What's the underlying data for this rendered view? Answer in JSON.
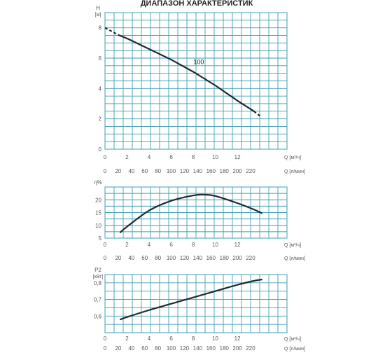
{
  "page": {
    "title": "ДИАПАЗОН ХАРАКТЕРИСТИК",
    "grid_color": "#3f9fb2",
    "curve_color": "#1e2a36"
  },
  "chart_data": [
    {
      "type": "line",
      "ylabel": "H",
      "yunit": "[м]",
      "xlim": [
        0,
        16.5
      ],
      "ylim": [
        0,
        9
      ],
      "xticks": [
        "0",
        "2",
        "4",
        "6",
        "8",
        "10",
        "12"
      ],
      "xtick_values": [
        0,
        2,
        4,
        6,
        8,
        10,
        12
      ],
      "xlabel": "Q [м³/ч]",
      "xticks2": [
        "0",
        "20",
        "40",
        "60",
        "80",
        "100",
        "120",
        "140",
        "160",
        "180",
        "200",
        "220"
      ],
      "xtick2_values": [
        0,
        20,
        40,
        60,
        80,
        100,
        120,
        140,
        160,
        180,
        200,
        220
      ],
      "xlabel2": "Q [л/мин]",
      "yticks": [
        "0",
        "2",
        "4",
        "6",
        "8"
      ],
      "ytick_values": [
        0,
        2,
        4,
        6,
        8
      ],
      "grid": true,
      "series": [
        {
          "name": "100",
          "x": [
            0,
            1.3,
            2,
            4,
            6,
            8,
            10,
            12,
            13.5,
            14.2
          ],
          "y": [
            8.0,
            7.5,
            7.3,
            6.6,
            5.9,
            5.1,
            4.2,
            3.2,
            2.5,
            2.1
          ]
        }
      ]
    },
    {
      "type": "line",
      "ylabel": "η%",
      "yunit": "",
      "xlim": [
        0,
        16.5
      ],
      "ylim": [
        5,
        25
      ],
      "xticks": [
        "0",
        "2",
        "4",
        "6",
        "8",
        "10",
        "12"
      ],
      "xtick_values": [
        0,
        2,
        4,
        6,
        8,
        10,
        12
      ],
      "xlabel": "Q [м³/ч]",
      "xticks2": [
        "0",
        "20",
        "40",
        "60",
        "80",
        "100",
        "120",
        "140",
        "160",
        "180",
        "200",
        "220"
      ],
      "xtick2_values": [
        0,
        20,
        40,
        60,
        80,
        100,
        120,
        140,
        160,
        180,
        200,
        220
      ],
      "xlabel2": "Q [л/мин]",
      "yticks": [
        "5",
        "10",
        "15",
        "20"
      ],
      "ytick_values": [
        5,
        10,
        15,
        20
      ],
      "grid": true,
      "series": [
        {
          "x": [
            1.4,
            2,
            4,
            6,
            8,
            9,
            10,
            12,
            13.5,
            14.2
          ],
          "y": [
            7.3,
            9.5,
            15.8,
            19.6,
            21.7,
            22,
            21.5,
            18.7,
            16.2,
            14.8
          ]
        }
      ]
    },
    {
      "type": "line",
      "ylabel": "P2",
      "yunit": "[кВт]",
      "xlim": [
        0,
        16.5
      ],
      "ylim": [
        0.5,
        0.85
      ],
      "xticks": [
        "0",
        "2",
        "4",
        "6",
        "8",
        "10",
        "12"
      ],
      "xtick_values": [
        0,
        2,
        4,
        6,
        8,
        10,
        12
      ],
      "xlabel": "Q [м³/ч]",
      "xticks2": [
        "0",
        "20",
        "40",
        "60",
        "80",
        "100",
        "120",
        "140",
        "160",
        "180",
        "200",
        "220"
      ],
      "xtick2_values": [
        0,
        20,
        40,
        60,
        80,
        100,
        120,
        140,
        160,
        180,
        200,
        220
      ],
      "xlabel2": "Q [л/мин]",
      "yticks": [
        "0,6",
        "0,7",
        "0,8"
      ],
      "ytick_values": [
        0.6,
        0.7,
        0.8
      ],
      "grid": true,
      "series": [
        {
          "x": [
            1.4,
            2,
            4,
            6,
            8,
            10,
            12,
            13.5,
            14.2
          ],
          "y": [
            0.58,
            0.594,
            0.636,
            0.674,
            0.712,
            0.75,
            0.788,
            0.812,
            0.82
          ]
        }
      ]
    }
  ]
}
